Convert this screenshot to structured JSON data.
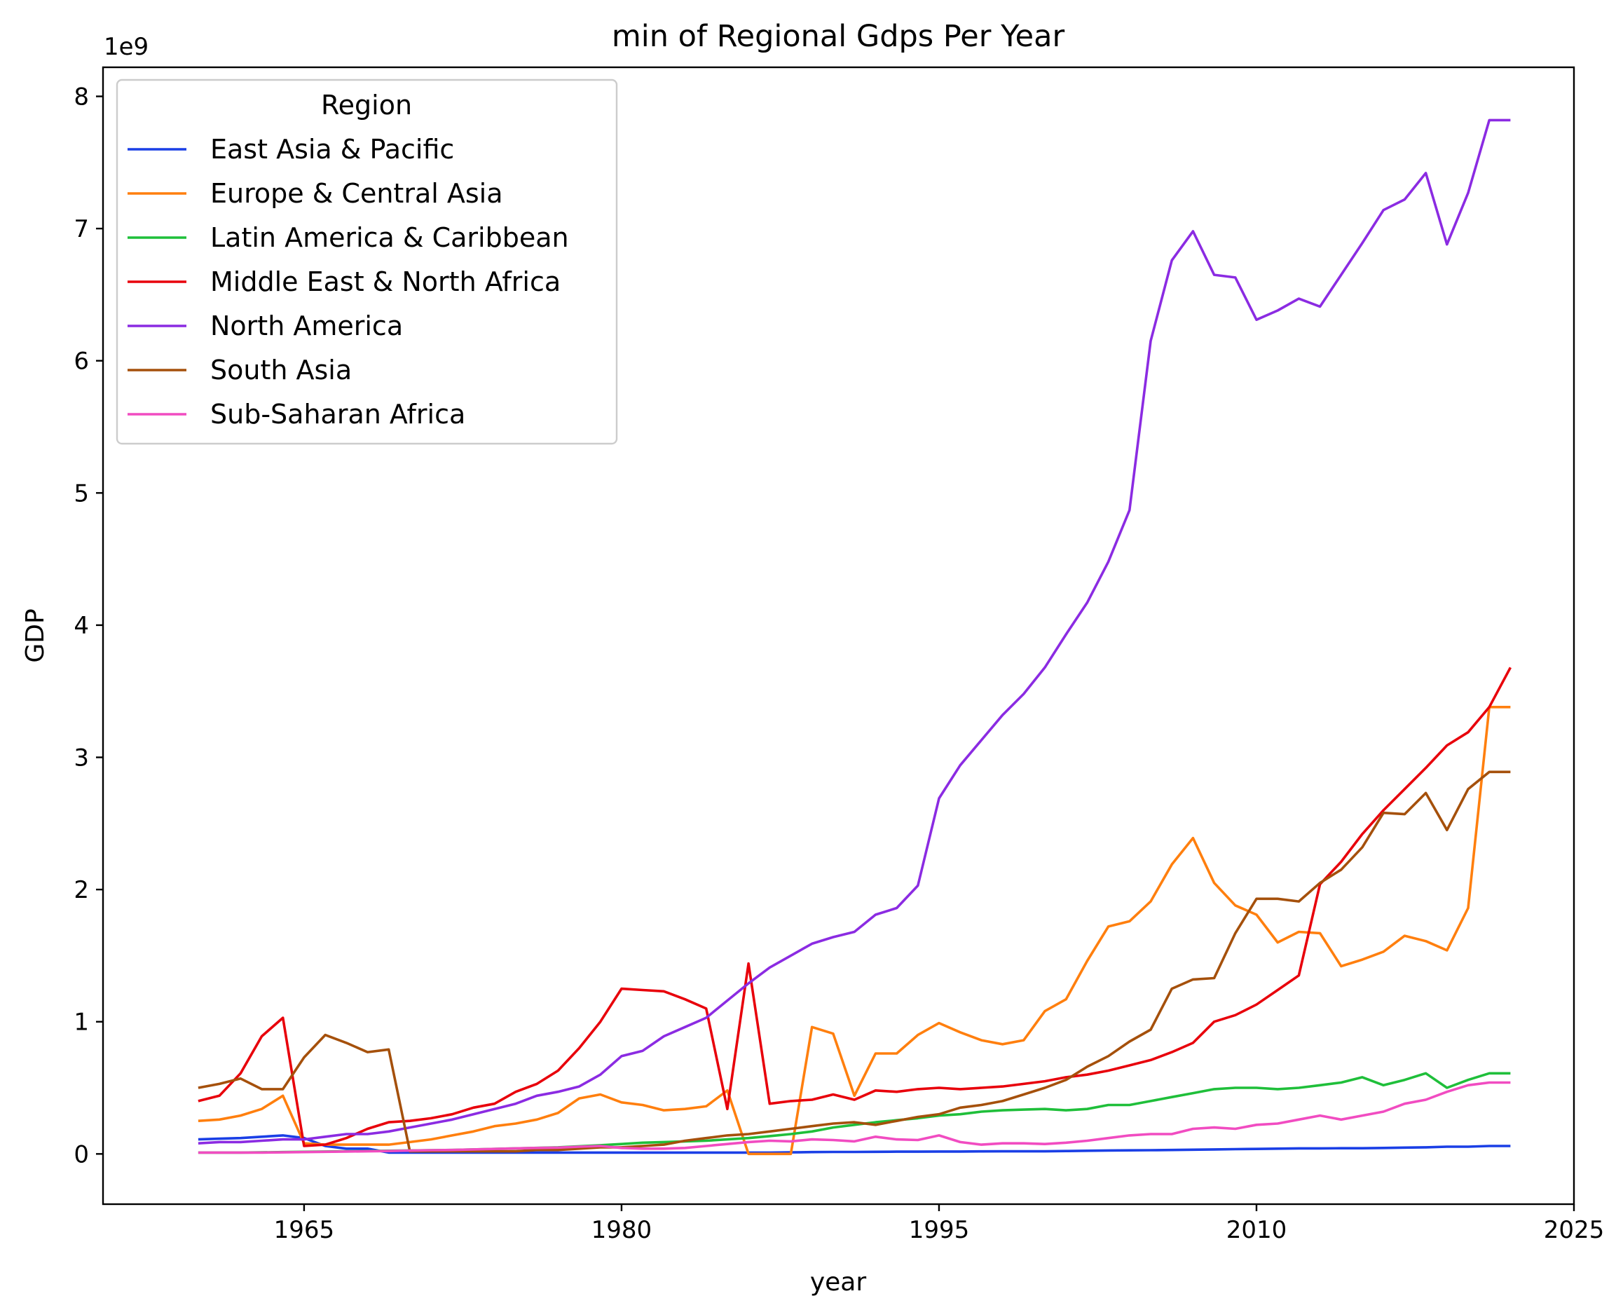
{
  "chart_data": {
    "type": "line",
    "title": "min of Regional Gdps Per Year",
    "xlabel": "year",
    "ylabel": "GDP",
    "y_offset_label": "1e9",
    "xlim": [
      1955.5,
      2025.0
    ],
    "ylim": [
      -0.38,
      8.22
    ],
    "x_ticks": [
      1965,
      1980,
      1995,
      2010,
      2025
    ],
    "x_tick_labels": [
      "1965",
      "1980",
      "1995",
      "2010",
      "2025"
    ],
    "y_ticks": [
      0,
      1,
      2,
      3,
      4,
      5,
      6,
      7,
      8
    ],
    "y_tick_labels": [
      "0",
      "1",
      "2",
      "3",
      "4",
      "5",
      "6",
      "7",
      "8"
    ],
    "grid": false,
    "legend": {
      "title": "Region",
      "placement": "upper-left"
    },
    "x": [
      1960,
      1961,
      1962,
      1963,
      1964,
      1965,
      1966,
      1967,
      1968,
      1969,
      1970,
      1971,
      1972,
      1973,
      1974,
      1975,
      1976,
      1977,
      1978,
      1979,
      1980,
      1981,
      1982,
      1983,
      1984,
      1985,
      1986,
      1987,
      1988,
      1989,
      1990,
      1991,
      1992,
      1993,
      1994,
      1995,
      1996,
      1997,
      1998,
      1999,
      2000,
      2001,
      2002,
      2003,
      2004,
      2005,
      2006,
      2007,
      2008,
      2009,
      2010,
      2011,
      2012,
      2013,
      2014,
      2015,
      2016,
      2017,
      2018,
      2019,
      2020,
      2021,
      2022
    ],
    "series": [
      {
        "name": "East Asia & Pacific",
        "color": "#1a3fe6",
        "values": [
          0.11,
          0.115,
          0.12,
          0.13,
          0.14,
          0.12,
          0.06,
          0.04,
          0.04,
          0.01,
          0.01,
          0.01,
          0.01,
          0.01,
          0.01,
          0.01,
          0.01,
          0.01,
          0.01,
          0.01,
          0.01,
          0.01,
          0.01,
          0.01,
          0.01,
          0.01,
          0.01,
          0.01,
          0.012,
          0.014,
          0.015,
          0.015,
          0.016,
          0.017,
          0.017,
          0.018,
          0.018,
          0.019,
          0.02,
          0.02,
          0.02,
          0.022,
          0.024,
          0.026,
          0.027,
          0.028,
          0.03,
          0.032,
          0.034,
          0.036,
          0.038,
          0.04,
          0.042,
          0.042,
          0.043,
          0.043,
          0.045,
          0.048,
          0.05,
          0.055,
          0.055,
          0.06,
          0.06
        ]
      },
      {
        "name": "Europe & Central Asia",
        "color": "#ff7f0e",
        "values": [
          0.25,
          0.26,
          0.29,
          0.34,
          0.44,
          0.08,
          0.07,
          0.07,
          0.07,
          0.07,
          0.09,
          0.11,
          0.14,
          0.17,
          0.21,
          0.23,
          0.26,
          0.31,
          0.42,
          0.45,
          0.39,
          0.37,
          0.33,
          0.34,
          0.36,
          0.48,
          0.0,
          0.0,
          0.0,
          0.96,
          0.91,
          0.44,
          0.76,
          0.76,
          0.9,
          0.99,
          0.92,
          0.86,
          0.83,
          0.86,
          1.08,
          1.17,
          1.46,
          1.72,
          1.76,
          1.91,
          2.19,
          2.39,
          2.05,
          1.88,
          1.81,
          1.6,
          1.68,
          1.67,
          1.42,
          1.47,
          1.53,
          1.65,
          1.61,
          1.54,
          1.86,
          3.38,
          3.38
        ]
      },
      {
        "name": "Latin America & Caribbean",
        "color": "#1fbf3a",
        "values": [
          0.01,
          0.01,
          0.01,
          0.012,
          0.014,
          0.016,
          0.018,
          0.02,
          0.022,
          0.024,
          0.026,
          0.028,
          0.03,
          0.034,
          0.038,
          0.042,
          0.046,
          0.05,
          0.058,
          0.066,
          0.075,
          0.085,
          0.09,
          0.095,
          0.1,
          0.11,
          0.12,
          0.135,
          0.15,
          0.17,
          0.2,
          0.22,
          0.24,
          0.255,
          0.27,
          0.29,
          0.3,
          0.32,
          0.33,
          0.335,
          0.34,
          0.33,
          0.34,
          0.37,
          0.37,
          0.4,
          0.43,
          0.46,
          0.49,
          0.5,
          0.5,
          0.49,
          0.5,
          0.52,
          0.54,
          0.58,
          0.52,
          0.56,
          0.61,
          0.5,
          0.56,
          0.61,
          0.61
        ]
      },
      {
        "name": "Middle East & North Africa",
        "color": "#e8000b",
        "values": [
          0.4,
          0.44,
          0.61,
          0.89,
          1.03,
          0.06,
          0.07,
          0.12,
          0.19,
          0.24,
          0.25,
          0.27,
          0.3,
          0.35,
          0.38,
          0.47,
          0.53,
          0.63,
          0.8,
          1.0,
          1.25,
          1.24,
          1.23,
          1.17,
          1.1,
          0.34,
          1.44,
          0.38,
          0.4,
          0.41,
          0.45,
          0.41,
          0.48,
          0.47,
          0.49,
          0.5,
          0.49,
          0.5,
          0.51,
          0.53,
          0.55,
          0.58,
          0.6,
          0.63,
          0.67,
          0.71,
          0.77,
          0.84,
          1.0,
          1.05,
          1.13,
          1.24,
          1.35,
          2.04,
          2.21,
          2.42,
          2.6,
          2.76,
          2.92,
          3.09,
          3.19,
          3.38,
          3.68
        ]
      },
      {
        "name": "North America",
        "color": "#8b2be2",
        "values": [
          0.08,
          0.09,
          0.09,
          0.1,
          0.11,
          0.11,
          0.13,
          0.15,
          0.15,
          0.17,
          0.2,
          0.23,
          0.26,
          0.3,
          0.34,
          0.38,
          0.44,
          0.47,
          0.51,
          0.6,
          0.74,
          0.78,
          0.89,
          0.96,
          1.03,
          1.16,
          1.29,
          1.41,
          1.5,
          1.59,
          1.64,
          1.68,
          1.81,
          1.86,
          2.03,
          2.69,
          2.94,
          3.13,
          3.32,
          3.48,
          3.68,
          3.93,
          4.17,
          4.48,
          4.87,
          6.15,
          6.76,
          6.98,
          6.65,
          6.63,
          6.31,
          6.38,
          6.47,
          6.41,
          6.65,
          6.89,
          7.14,
          7.22,
          7.42,
          6.88,
          7.27,
          7.82,
          7.82
        ]
      },
      {
        "name": "South Asia",
        "color": "#a5500b",
        "values": [
          0.5,
          0.53,
          0.57,
          0.49,
          0.49,
          0.73,
          0.9,
          0.84,
          0.77,
          0.79,
          0.02,
          0.02,
          0.02,
          0.02,
          0.02,
          0.02,
          0.03,
          0.03,
          0.04,
          0.05,
          0.05,
          0.06,
          0.07,
          0.1,
          0.12,
          0.14,
          0.15,
          0.17,
          0.19,
          0.21,
          0.23,
          0.24,
          0.22,
          0.25,
          0.28,
          0.3,
          0.35,
          0.37,
          0.4,
          0.45,
          0.5,
          0.56,
          0.66,
          0.74,
          0.85,
          0.94,
          1.25,
          1.32,
          1.33,
          1.67,
          1.93,
          1.93,
          1.91,
          2.05,
          2.15,
          2.32,
          2.58,
          2.57,
          2.73,
          2.45,
          2.76,
          2.89,
          2.89
        ]
      },
      {
        "name": "Sub-Saharan Africa",
        "color": "#f14cc1",
        "values": [
          0.01,
          0.01,
          0.01,
          0.01,
          0.012,
          0.014,
          0.016,
          0.018,
          0.02,
          0.022,
          0.025,
          0.028,
          0.03,
          0.034,
          0.038,
          0.042,
          0.045,
          0.048,
          0.055,
          0.06,
          0.045,
          0.04,
          0.04,
          0.045,
          0.06,
          0.075,
          0.09,
          0.1,
          0.095,
          0.11,
          0.105,
          0.095,
          0.13,
          0.11,
          0.105,
          0.14,
          0.09,
          0.07,
          0.08,
          0.08,
          0.075,
          0.085,
          0.1,
          0.12,
          0.14,
          0.15,
          0.15,
          0.19,
          0.2,
          0.19,
          0.22,
          0.23,
          0.26,
          0.29,
          0.26,
          0.29,
          0.32,
          0.38,
          0.41,
          0.47,
          0.52,
          0.54,
          0.54
        ]
      }
    ]
  }
}
